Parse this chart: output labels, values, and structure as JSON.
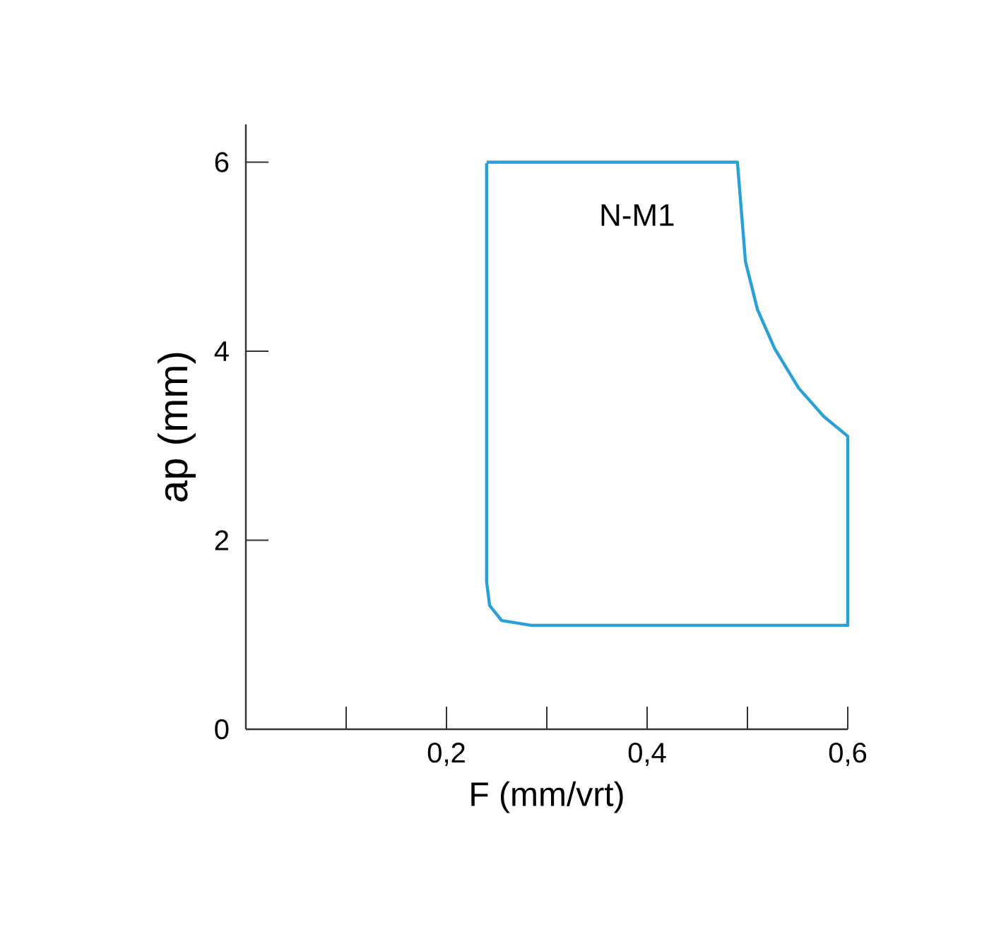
{
  "chart_data": {
    "type": "line",
    "xlabel": "F (mm/vrt)",
    "ylabel": "ap (mm)",
    "xlim": [
      0,
      0.6
    ],
    "ylim": [
      0,
      6.4
    ],
    "xticks": [
      {
        "value": 0.1,
        "label": null
      },
      {
        "value": 0.2,
        "label": "0,2"
      },
      {
        "value": 0.3,
        "label": null
      },
      {
        "value": 0.4,
        "label": "0,4"
      },
      {
        "value": 0.5,
        "label": null
      },
      {
        "value": 0.6,
        "label": "0,6"
      }
    ],
    "yticks": [
      0,
      2,
      4,
      6
    ],
    "series": [
      {
        "color": "#2a9fd8",
        "line_style": "solid",
        "x": [
          0.24,
          0.49,
          0.498,
          0.51,
          0.527,
          0.551,
          0.576,
          0.6,
          0.6,
          0.284,
          0.255,
          0.243,
          0.24,
          0.24
        ],
        "values": [
          6.0,
          6.0,
          4.95,
          4.44,
          4.03,
          3.61,
          3.31,
          3.1,
          1.1,
          1.1,
          1.15,
          1.31,
          1.56,
          5.99
        ]
      }
    ],
    "annotations": [
      "N-M1"
    ]
  }
}
